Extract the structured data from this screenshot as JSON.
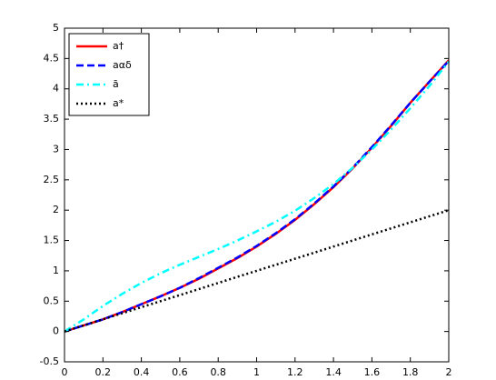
{
  "chart_data": {
    "type": "line",
    "x": [
      0,
      0.1,
      0.2,
      0.3,
      0.4,
      0.5,
      0.6,
      0.7,
      0.8,
      0.9,
      1,
      1.1,
      1.2,
      1.3,
      1.4,
      1.5,
      1.6,
      1.7,
      1.8,
      1.9,
      2
    ],
    "series": [
      {
        "name": "a†",
        "color": "#ff0000",
        "style": "solid",
        "values": [
          0,
          0.1,
          0.2,
          0.32,
          0.45,
          0.58,
          0.72,
          0.87,
          1.04,
          1.21,
          1.4,
          1.61,
          1.84,
          2.1,
          2.38,
          2.69,
          3.03,
          3.39,
          3.77,
          4.12,
          4.47
        ]
      },
      {
        "name": "aαδ",
        "color": "#0000ff",
        "style": "dashed",
        "values": [
          0,
          0.1,
          0.2,
          0.32,
          0.45,
          0.58,
          0.72,
          0.88,
          1.05,
          1.22,
          1.41,
          1.62,
          1.85,
          2.11,
          2.39,
          2.7,
          3.04,
          3.4,
          3.77,
          4.12,
          4.46
        ]
      },
      {
        "name": "ā",
        "color": "#00ffff",
        "style": "dashdot",
        "values": [
          0,
          0.2,
          0.42,
          0.62,
          0.8,
          0.96,
          1.1,
          1.23,
          1.36,
          1.5,
          1.65,
          1.81,
          1.99,
          2.2,
          2.43,
          2.7,
          3.0,
          3.33,
          3.68,
          4.05,
          4.45
        ]
      },
      {
        "name": "a*",
        "color": "#000000",
        "style": "dotted",
        "values": [
          0,
          0.1,
          0.2,
          0.3,
          0.4,
          0.5,
          0.6,
          0.7,
          0.8,
          0.9,
          1,
          1.1,
          1.2,
          1.3,
          1.4,
          1.5,
          1.6,
          1.7,
          1.8,
          1.9,
          2
        ]
      }
    ],
    "xlim": [
      0,
      2
    ],
    "xticks": [
      0,
      0.2,
      0.4,
      0.6,
      0.8,
      1,
      1.2,
      1.4,
      1.6,
      1.8,
      2
    ],
    "ylim": [
      -0.5,
      5
    ],
    "yticks": [
      -0.5,
      0,
      0.5,
      1,
      1.5,
      2,
      2.5,
      3,
      3.5,
      4,
      4.5,
      5
    ],
    "legend": "upper-left"
  }
}
